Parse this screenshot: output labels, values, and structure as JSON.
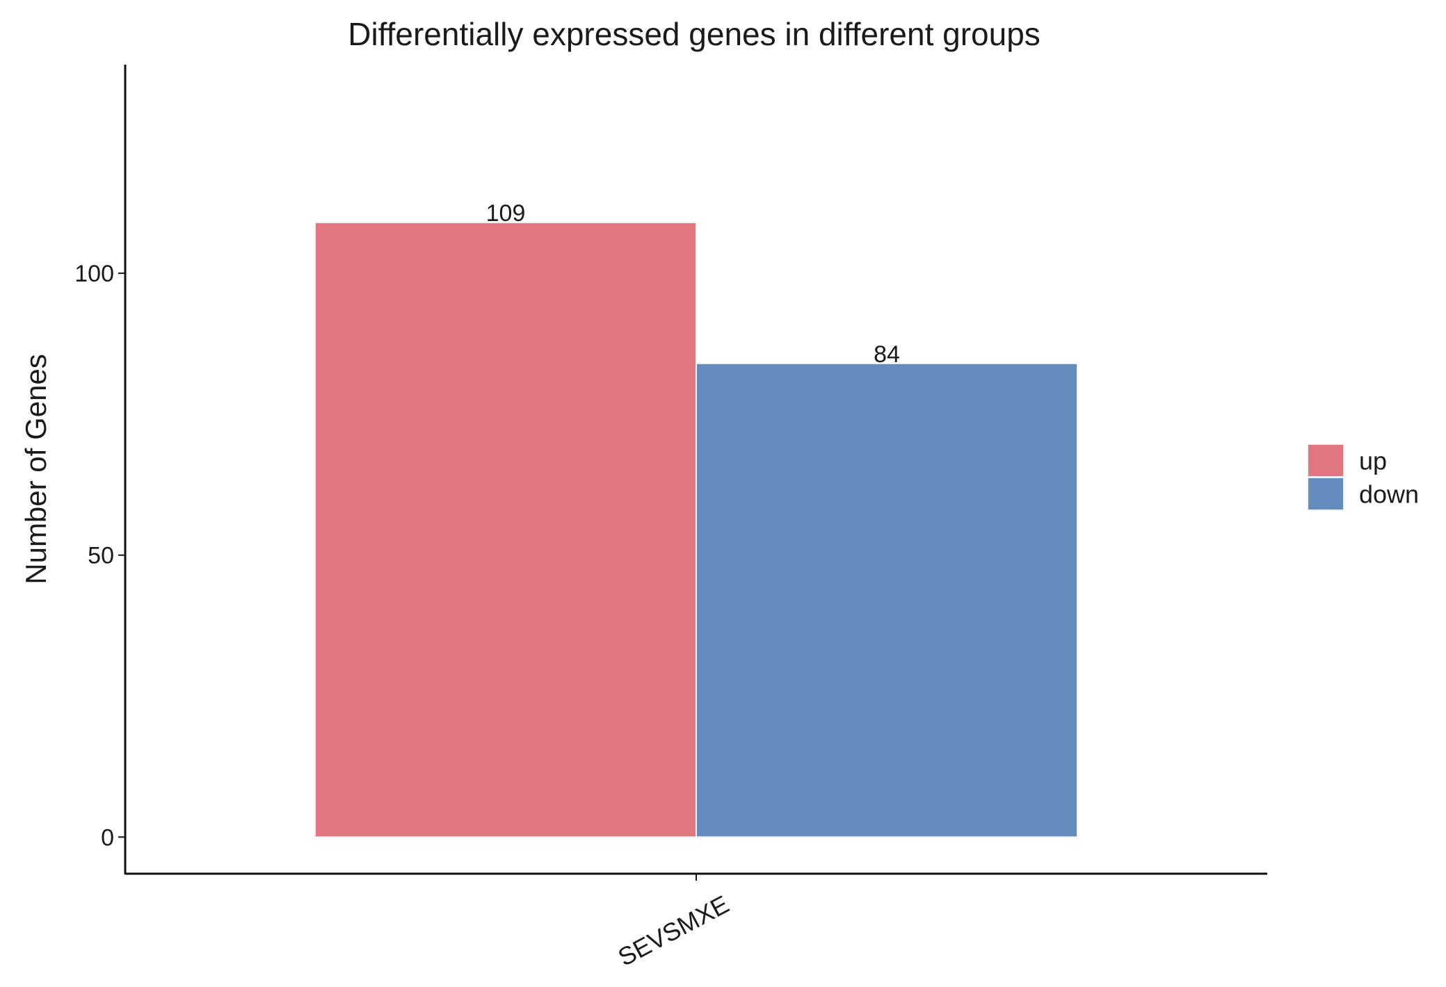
{
  "chart_data": {
    "type": "bar",
    "title": "Differentially expressed genes in different groups",
    "xlabel": "",
    "ylabel": "Number of Genes",
    "categories": [
      "SEVSMXE"
    ],
    "series": [
      {
        "name": "up",
        "values": [
          109
        ],
        "color": "#E07680"
      },
      {
        "name": "down",
        "values": [
          84
        ],
        "color": "#638BBE"
      }
    ],
    "ylim": [
      -6.5,
      137
    ],
    "yticks": [
      0,
      50,
      100
    ],
    "data_labels": [
      "109",
      "84"
    ],
    "legend_position": "right",
    "grid": false
  }
}
